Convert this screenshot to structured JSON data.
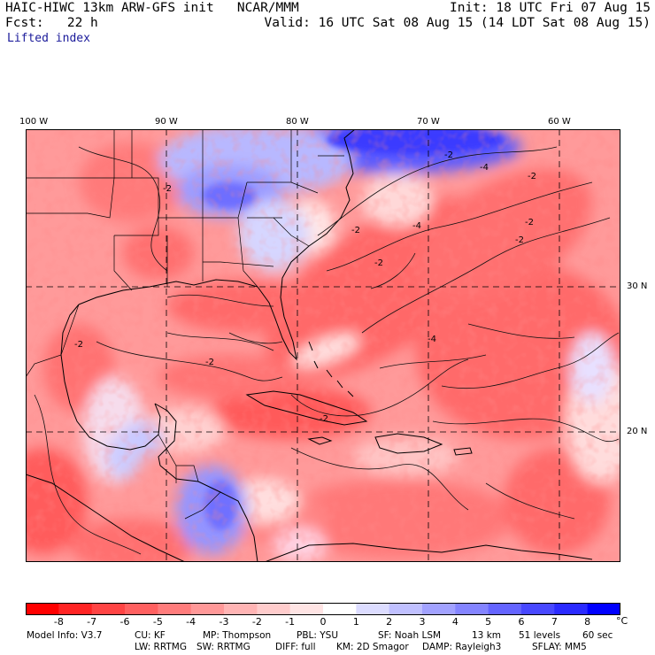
{
  "header": {
    "model": "HAIC-HIWC 13km ARW-GFS init   NCAR/MMM",
    "init": "Init: 18 UTC Fri 07 Aug 15",
    "fcst": "Fcst:   22 h",
    "valid": "Valid: 16 UTC Sat 08 Aug 15 (14 LDT Sat 08 Aug 15)",
    "field": "Lifted index"
  },
  "map": {
    "lon_labels": [
      "100 W",
      "90 W",
      "80 W",
      "70 W",
      "60 W"
    ],
    "lat_labels": [
      "30 N",
      "20 N"
    ],
    "contour_labels": [
      "-2",
      "-4",
      "-2",
      "-2",
      "-2",
      "-4",
      "-2",
      "-2",
      "-2",
      "-4",
      "-2",
      "-2",
      "-2"
    ]
  },
  "colorbar": {
    "colors": [
      "#ff0000",
      "#ff2424",
      "#ff4444",
      "#ff6060",
      "#ff7c7c",
      "#ff9898",
      "#ffb4b4",
      "#ffcccc",
      "#ffe4e4",
      "#ffffff",
      "#dcdcff",
      "#c0c0ff",
      "#a2a2ff",
      "#8484ff",
      "#6464ff",
      "#4848ff",
      "#2a2aff",
      "#0000ff"
    ],
    "labels": [
      "-8",
      "-7",
      "-6",
      "-5",
      "-4",
      "-3",
      "-2",
      "-1",
      "0",
      "1",
      "2",
      "3",
      "4",
      "5",
      "6",
      "7",
      "8"
    ],
    "unit": "°C"
  },
  "footer": {
    "line1": [
      "Model Info: V3.7",
      "CU: KF",
      "MP: Thompson",
      "PBL: YSU",
      "SF: Noah LSM",
      "13 km",
      "51 levels",
      "60 sec"
    ],
    "line2": [
      "LW: RRTMG",
      "SW: RRTMG",
      "DIFF: full",
      "KM: 2D Smagor",
      "DAMP: Rayleigh3",
      "SFLAY: MM5"
    ]
  }
}
